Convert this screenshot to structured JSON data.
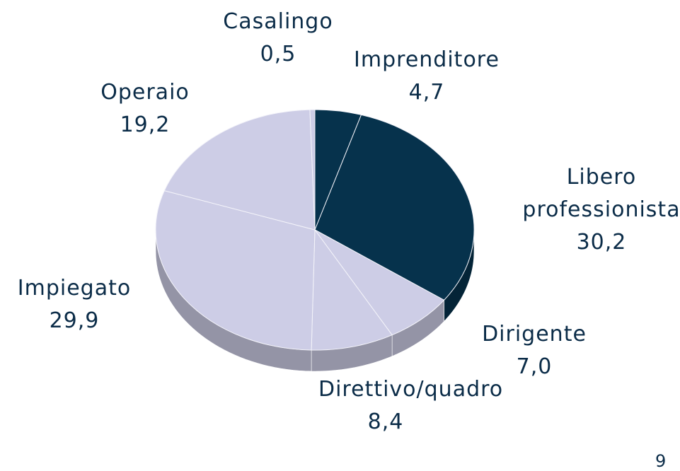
{
  "chart_data": {
    "type": "pie",
    "categories": [
      "Imprenditore",
      "Libero professionista",
      "Dirigente",
      "Direttivo/quadro",
      "Impiegato",
      "Operaio",
      "Casalingo"
    ],
    "values": [
      4.7,
      30.2,
      7.0,
      8.4,
      29.9,
      19.2,
      0.5
    ],
    "value_labels": [
      "4,7",
      "30,2",
      "7,0",
      "8,4",
      "29,9",
      "19,2",
      "0,5"
    ],
    "colors": [
      "#06324c",
      "#06324c",
      "#cdcde6",
      "#cdcde6",
      "#cdcde6",
      "#cdcde6",
      "#cdcde6"
    ]
  },
  "page_number": "9"
}
